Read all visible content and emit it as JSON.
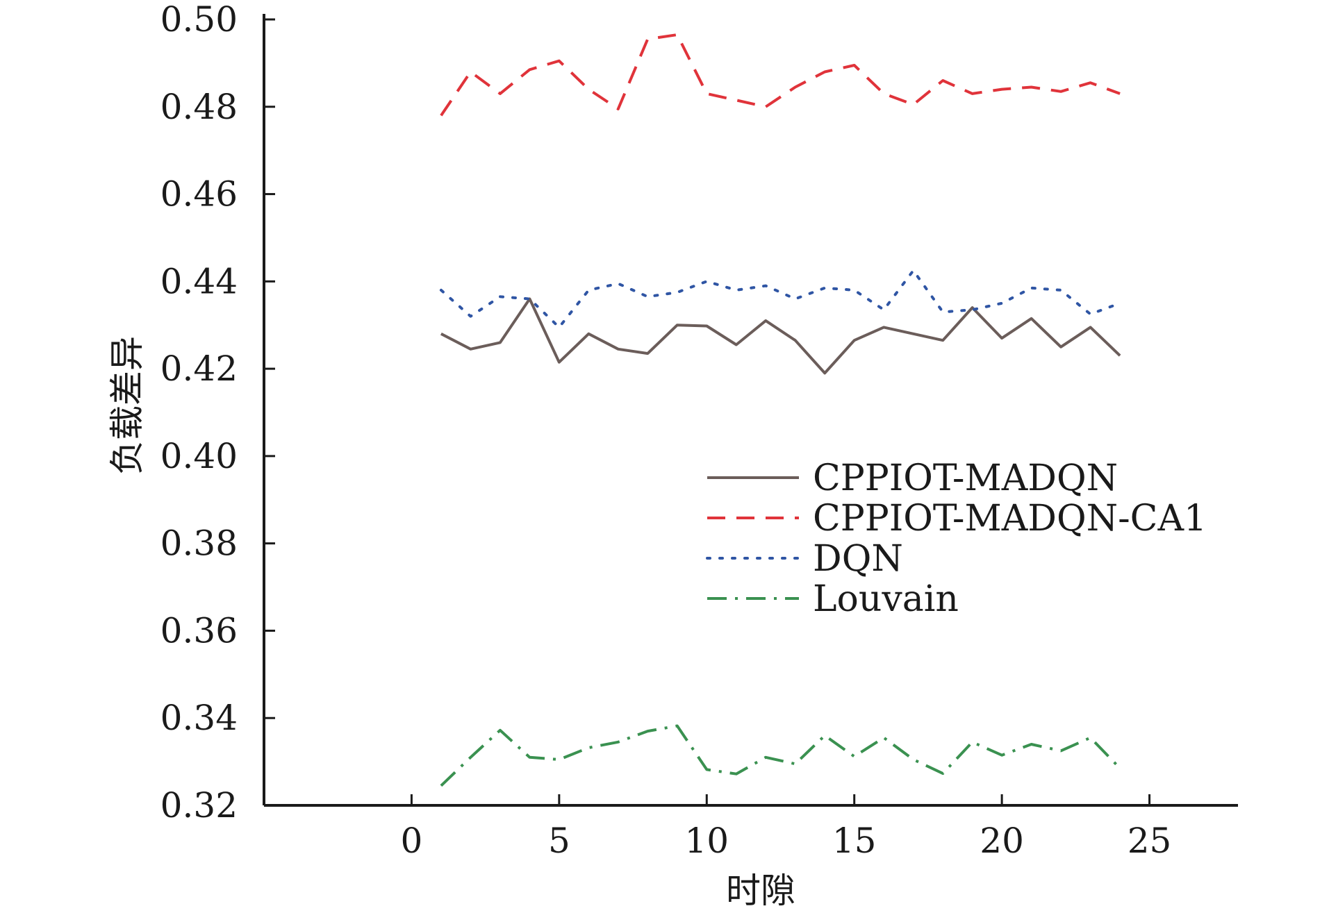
{
  "chart_data": {
    "type": "line",
    "title": "",
    "xlabel": "时隙",
    "ylabel": "负载差异",
    "xlim": [
      -5,
      28
    ],
    "ylim": [
      0.32,
      0.5
    ],
    "xticks": [
      0,
      5,
      10,
      15,
      20,
      25
    ],
    "yticks": [
      0.32,
      0.34,
      0.36,
      0.38,
      0.4,
      0.42,
      0.44,
      0.46,
      0.48,
      0.5
    ],
    "xtick_labels": [
      "0",
      "5",
      "10",
      "15",
      "20",
      "25"
    ],
    "ytick_labels": [
      "0.32",
      "0.34",
      "0.36",
      "0.38",
      "0.40",
      "0.42",
      "0.44",
      "0.46",
      "0.48",
      "0.50"
    ],
    "grid": false,
    "legend_position": "center-right",
    "x": [
      1,
      2,
      3,
      4,
      5,
      6,
      7,
      8,
      9,
      10,
      11,
      12,
      13,
      14,
      15,
      16,
      17,
      18,
      19,
      20,
      21,
      22,
      23,
      24
    ],
    "series": [
      {
        "name": "CPPIOT-MADQN",
        "color": "#6b5d5a",
        "style": "solid",
        "values": [
          0.428,
          0.4245,
          0.426,
          0.436,
          0.4215,
          0.428,
          0.4245,
          0.4235,
          0.43,
          0.4298,
          0.4255,
          0.431,
          0.4265,
          0.419,
          0.4265,
          0.4295,
          0.428,
          0.4265,
          0.434,
          0.427,
          0.4315,
          0.425,
          0.4295,
          0.423
        ]
      },
      {
        "name": "CPPIOT-MADQN-CA1",
        "color": "#e0333a",
        "style": "dashed",
        "values": [
          0.478,
          0.488,
          0.483,
          0.4885,
          0.4905,
          0.484,
          0.4795,
          0.4955,
          0.4965,
          0.483,
          0.4815,
          0.48,
          0.4845,
          0.488,
          0.4895,
          0.483,
          0.4805,
          0.486,
          0.483,
          0.484,
          0.4845,
          0.4835,
          0.4855,
          0.483
        ]
      },
      {
        "name": "DQN",
        "color": "#2f55a4",
        "style": "dotted",
        "values": [
          0.438,
          0.432,
          0.4365,
          0.436,
          0.4295,
          0.438,
          0.4395,
          0.4365,
          0.4375,
          0.44,
          0.438,
          0.439,
          0.436,
          0.4385,
          0.438,
          0.4335,
          0.4425,
          0.433,
          0.4335,
          0.435,
          0.4385,
          0.438,
          0.4325,
          0.435
        ]
      },
      {
        "name": "Louvain",
        "color": "#3a9150",
        "style": "dashdot",
        "values": [
          0.3245,
          0.331,
          0.3372,
          0.331,
          0.3305,
          0.3332,
          0.3345,
          0.337,
          0.3382,
          0.3282,
          0.3272,
          0.331,
          0.3295,
          0.336,
          0.3312,
          0.3355,
          0.3305,
          0.3273,
          0.3345,
          0.3315,
          0.334,
          0.3325,
          0.3355,
          0.3285
        ]
      }
    ]
  }
}
